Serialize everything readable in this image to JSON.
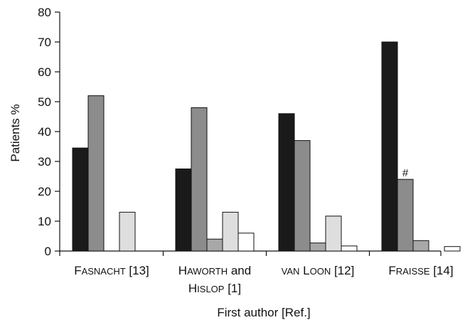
{
  "chart_data": {
    "type": "bar",
    "title": "",
    "xlabel": "First author [Ref.]",
    "ylabel": "Patients %",
    "ylim": [
      0,
      80
    ],
    "yticks": [
      0,
      10,
      20,
      30,
      40,
      50,
      60,
      70,
      80
    ],
    "grid": false,
    "legend": "none",
    "categories": [
      {
        "lines": [
          [
            {
              "t": "F",
              "sc": false
            },
            {
              "t": "ASNACHT",
              "sc": true
            },
            {
              "t": " [13]",
              "sc": false
            }
          ]
        ]
      },
      {
        "lines": [
          [
            {
              "t": "H",
              "sc": false
            },
            {
              "t": "AWORTH",
              "sc": true
            },
            {
              "t": " and",
              "sc": false
            }
          ],
          [
            {
              "t": "H",
              "sc": false
            },
            {
              "t": "ISLOP",
              "sc": true
            },
            {
              "t": " [1]",
              "sc": false
            }
          ]
        ]
      },
      {
        "lines": [
          [
            {
              "t": "VAN",
              "sc": true
            },
            {
              "t": " L",
              "sc": false
            },
            {
              "t": "OON",
              "sc": true
            },
            {
              "t": " [12]",
              "sc": false
            }
          ]
        ]
      },
      {
        "lines": [
          [
            {
              "t": "F",
              "sc": false
            },
            {
              "t": "RAISSE",
              "sc": true
            },
            {
              "t": " [14]",
              "sc": false
            }
          ]
        ]
      }
    ],
    "series": [
      {
        "color": "#1a1a1a",
        "values": [
          34.5,
          27.5,
          46,
          70
        ]
      },
      {
        "color": "#8c8c8c",
        "values": [
          52,
          48,
          37,
          24
        ]
      },
      {
        "color": "#a8a8a8",
        "values": [
          0,
          4,
          2.7,
          3.5
        ]
      },
      {
        "color": "#dedede",
        "values": [
          13,
          13,
          11.7,
          0
        ]
      },
      {
        "color": "#ffffff",
        "values": [
          0,
          6,
          1.7,
          1.5
        ]
      }
    ],
    "annotations": [
      {
        "category": 3,
        "series": 1,
        "text": "#"
      }
    ]
  }
}
